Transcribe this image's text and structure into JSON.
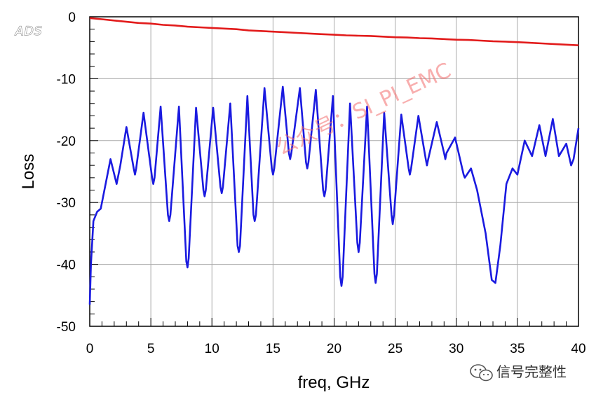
{
  "logo": "ADS",
  "watermark": "公众号：SI_PI_EMC",
  "brand": "信号完整性",
  "chart_data": {
    "type": "line",
    "title": "",
    "xlabel": "freq, GHz",
    "ylabel": "Loss",
    "xlim": [
      0,
      40
    ],
    "ylim": [
      -50,
      0
    ],
    "xticks": [
      0,
      5,
      10,
      15,
      20,
      25,
      30,
      35,
      40
    ],
    "yticks": [
      0,
      -10,
      -20,
      -30,
      -40,
      -50
    ],
    "minor_x_step": 1,
    "minor_y_step": 2,
    "grid": true,
    "legend": "none",
    "series": [
      {
        "color": "#e21b1b",
        "x": [
          0,
          1,
          2,
          3,
          4,
          5,
          6,
          7,
          8,
          9,
          10,
          11,
          12,
          13,
          14,
          15,
          16,
          17,
          18,
          19,
          20,
          21,
          22,
          23,
          24,
          25,
          26,
          27,
          28,
          29,
          30,
          31,
          32,
          33,
          34,
          35,
          36,
          37,
          38,
          39,
          40
        ],
        "y": [
          -0.2,
          -0.4,
          -0.6,
          -0.8,
          -1.0,
          -1.1,
          -1.3,
          -1.4,
          -1.6,
          -1.7,
          -1.8,
          -1.9,
          -2.0,
          -2.2,
          -2.3,
          -2.4,
          -2.5,
          -2.6,
          -2.7,
          -2.8,
          -2.9,
          -3.0,
          -3.05,
          -3.1,
          -3.2,
          -3.3,
          -3.35,
          -3.45,
          -3.5,
          -3.6,
          -3.7,
          -3.75,
          -3.85,
          -3.95,
          -4.0,
          -4.1,
          -4.2,
          -4.3,
          -4.4,
          -4.5,
          -4.6
        ]
      },
      {
        "color": "#1a1ae0",
        "x": [
          0.0,
          0.1,
          0.3,
          0.6,
          0.9,
          1.2,
          1.7,
          2.2,
          2.5,
          3.0,
          3.6,
          3.7,
          3.8,
          4.4,
          5.1,
          5.2,
          5.3,
          5.8,
          6.4,
          6.5,
          6.6,
          7.3,
          7.9,
          8.0,
          8.1,
          8.7,
          9.3,
          9.4,
          9.5,
          10.1,
          10.7,
          10.8,
          10.9,
          11.5,
          12.1,
          12.2,
          12.3,
          12.9,
          13.4,
          13.5,
          13.6,
          14.3,
          14.9,
          15.0,
          15.1,
          15.8,
          16.3,
          16.4,
          16.5,
          17.2,
          17.7,
          17.8,
          17.9,
          18.5,
          19.1,
          19.2,
          19.3,
          19.9,
          20.5,
          20.6,
          20.7,
          21.3,
          21.9,
          22.0,
          22.1,
          22.7,
          23.3,
          23.4,
          23.5,
          24.1,
          24.7,
          24.8,
          24.9,
          25.5,
          26.1,
          26.2,
          26.3,
          26.9,
          27.5,
          27.6,
          27.7,
          28.4,
          29.0,
          29.1,
          29.2,
          29.9,
          30.6,
          30.7,
          31.2,
          31.7,
          32.4,
          32.9,
          33.2,
          33.6,
          34.1,
          34.6,
          35.0,
          35.6,
          36.2,
          36.8,
          37.3,
          37.9,
          38.4,
          39.0,
          39.4,
          39.6,
          40.0
        ],
        "y": [
          -46.5,
          -40.0,
          -33.0,
          -31.5,
          -31.0,
          -28.0,
          -23.0,
          -27.0,
          -24.0,
          -17.8,
          -24.5,
          -25.5,
          -24.5,
          -15.5,
          -26.0,
          -27.0,
          -26.0,
          -14.5,
          -32.0,
          -33.0,
          -32.0,
          -14.5,
          -39.5,
          -40.5,
          -39.0,
          -14.7,
          -28.0,
          -29.0,
          -28.0,
          -14.7,
          -27.5,
          -28.5,
          -27.5,
          -14.0,
          -37.0,
          -38.0,
          -37.0,
          -12.8,
          -32.0,
          -33.0,
          -32.0,
          -11.5,
          -24.5,
          -25.5,
          -24.5,
          -11.3,
          -22.0,
          -23.0,
          -22.0,
          -11.5,
          -23.5,
          -24.5,
          -23.5,
          -11.8,
          -28.0,
          -29.0,
          -28.0,
          -12.8,
          -42.0,
          -43.5,
          -42.0,
          -14.0,
          -36.5,
          -38.0,
          -36.5,
          -14.5,
          -41.5,
          -43.0,
          -41.5,
          -15.5,
          -32.0,
          -33.5,
          -32.0,
          -15.8,
          -24.5,
          -25.5,
          -24.5,
          -16.0,
          -23.0,
          -24.0,
          -23.0,
          -17.0,
          -22.0,
          -23.0,
          -22.0,
          -19.5,
          -25.5,
          -26.0,
          -24.5,
          -28.0,
          -35.0,
          -42.5,
          -43.0,
          -37.0,
          -27.0,
          -24.5,
          -25.5,
          -20.0,
          -22.5,
          -17.5,
          -22.5,
          -16.5,
          -22.5,
          -20.5,
          -24.0,
          -23.0,
          -18.0
        ]
      }
    ]
  }
}
